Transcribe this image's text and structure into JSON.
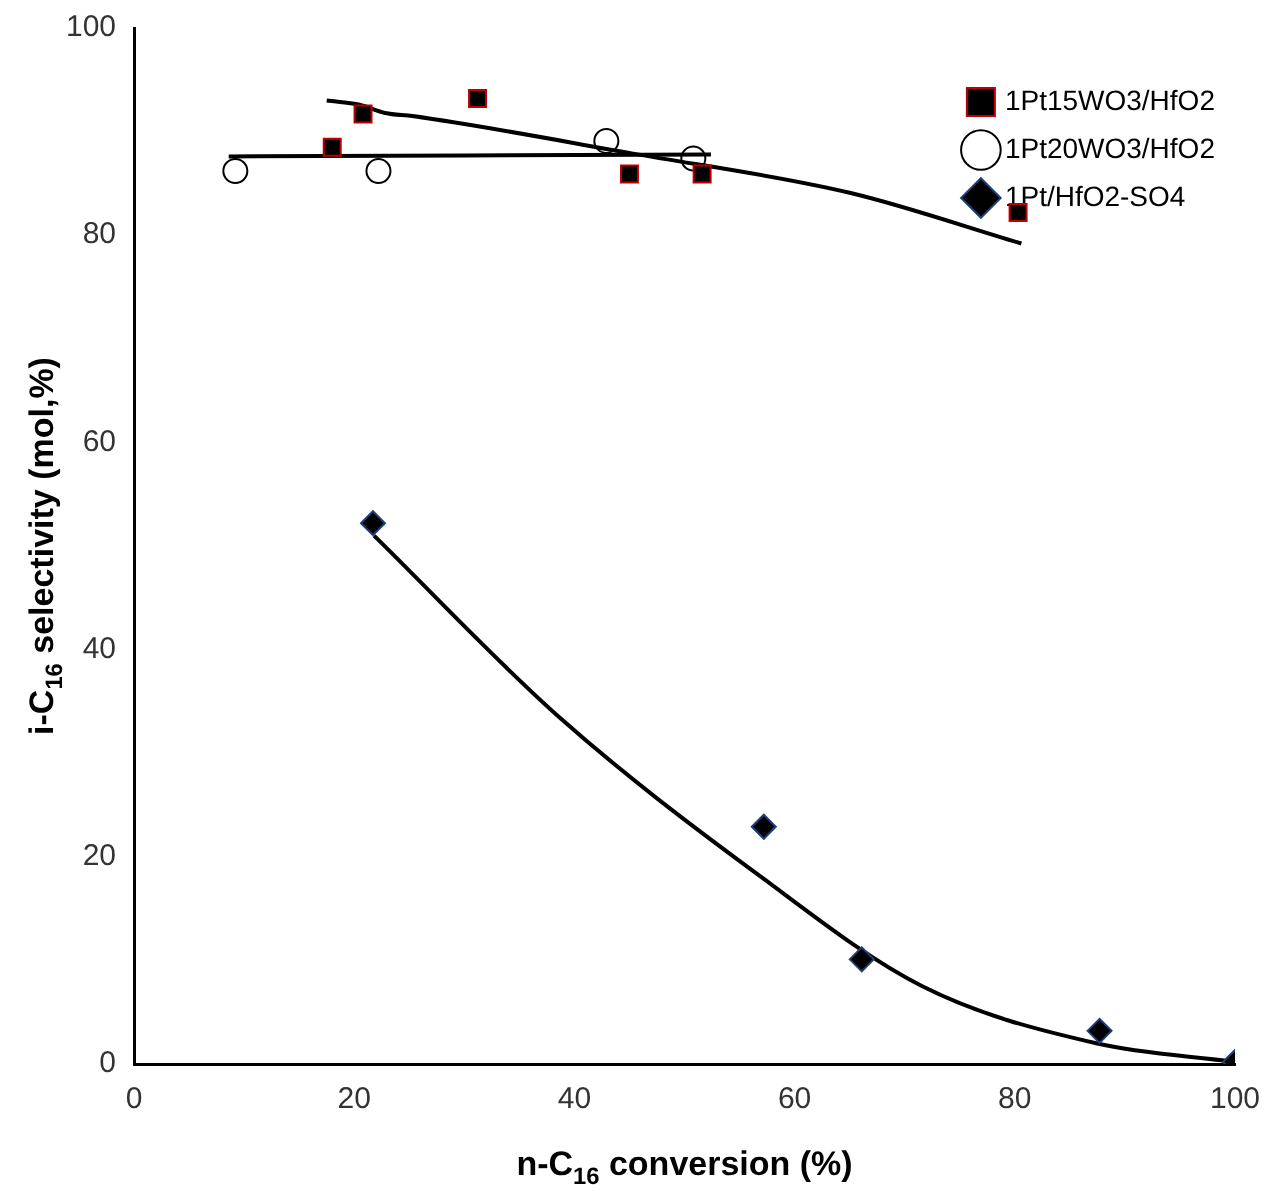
{
  "chart_data": {
    "type": "scatter",
    "xlabel": "n-C$_{16}$ conversion (%)",
    "ylabel": "i-C$_{16}$ selectivity (mol,%)",
    "xlim": [
      0,
      100
    ],
    "xticks": [
      0,
      20,
      40,
      60,
      80,
      100
    ],
    "ylim": [
      0,
      100
    ],
    "yticks": [
      0,
      20,
      40,
      60,
      80,
      100
    ],
    "grid": false,
    "legend": "right",
    "series": [
      {
        "name": "1Pt15WO3/HfO2",
        "color": "#000000",
        "marker": "square",
        "x": [
          18.0,
          20.8,
          31.2,
          45.0,
          51.6,
          80.3
        ],
        "values": [
          88.5,
          91.7,
          93.2,
          85.9,
          85.9,
          82.2
        ]
      },
      {
        "name": "1Pt20WO3/HfO2",
        "color": "#000000",
        "marker": "circle",
        "x": [
          9.2,
          22.2,
          42.9,
          50.8
        ],
        "values": [
          86.2,
          86.2,
          89.1,
          87.4
        ]
      },
      {
        "name": "1Pt/HfO2-SO4",
        "color": "#000000",
        "marker": "diamond",
        "x": [
          21.7,
          57.2,
          66.1,
          87.7,
          100
        ],
        "values": [
          52.2,
          22.9,
          10.1,
          3.2,
          0.2
        ]
      },
      {
        "type": "line",
        "color": "#000000",
        "marker": "none",
        "x": [
          17.5,
          20.5,
          22.8,
          25.3,
          45.2,
          65,
          80.6
        ],
        "values": [
          93.0,
          92.6,
          91.8,
          91.5,
          87.9,
          84.1,
          79.2
        ]
      },
      {
        "type": "line",
        "color": "#000000",
        "marker": "none",
        "x": [
          8.6,
          30,
          52.4
        ],
        "values": [
          87.6,
          87.7,
          87.8
        ]
      },
      {
        "type": "line",
        "color": "#000000",
        "marker": "none",
        "x": [
          21.8,
          38.6,
          56.4,
          71.6,
          87.4,
          100
        ],
        "values": [
          51.0,
          33.5,
          18.5,
          7.5,
          2.0,
          0.2
        ]
      }
    ]
  }
}
